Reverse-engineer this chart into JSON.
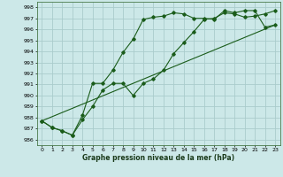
{
  "title": "Graphe pression niveau de la mer (hPa)",
  "background_color": "#cce8e8",
  "grid_color": "#aacccc",
  "line_color": "#1a5c1a",
  "x_ticks": [
    0,
    1,
    2,
    3,
    4,
    5,
    6,
    7,
    8,
    9,
    10,
    11,
    12,
    13,
    14,
    15,
    16,
    17,
    18,
    19,
    20,
    21,
    22,
    23
  ],
  "y_ticks": [
    986,
    987,
    988,
    989,
    990,
    991,
    992,
    993,
    994,
    995,
    996,
    997,
    998
  ],
  "ylim": [
    985.5,
    998.5
  ],
  "xlim": [
    -0.5,
    23.5
  ],
  "line1": [
    987.7,
    987.1,
    986.8,
    986.4,
    987.8,
    989.0,
    990.5,
    991.1,
    991.1,
    990.0,
    991.1,
    991.5,
    992.3,
    993.8,
    994.8,
    995.8,
    996.9,
    997.0,
    997.5,
    997.4,
    997.1,
    997.2,
    997.4,
    997.7
  ],
  "line2": [
    987.7,
    987.1,
    986.8,
    986.4,
    988.2,
    991.1,
    991.1,
    992.3,
    993.9,
    995.1,
    996.9,
    997.1,
    997.2,
    997.5,
    997.4,
    997.0,
    997.0,
    996.9,
    997.7,
    997.5,
    997.7,
    997.7,
    996.2,
    996.4
  ],
  "line3_x": [
    0,
    23
  ],
  "line3_y": [
    987.7,
    996.4
  ]
}
